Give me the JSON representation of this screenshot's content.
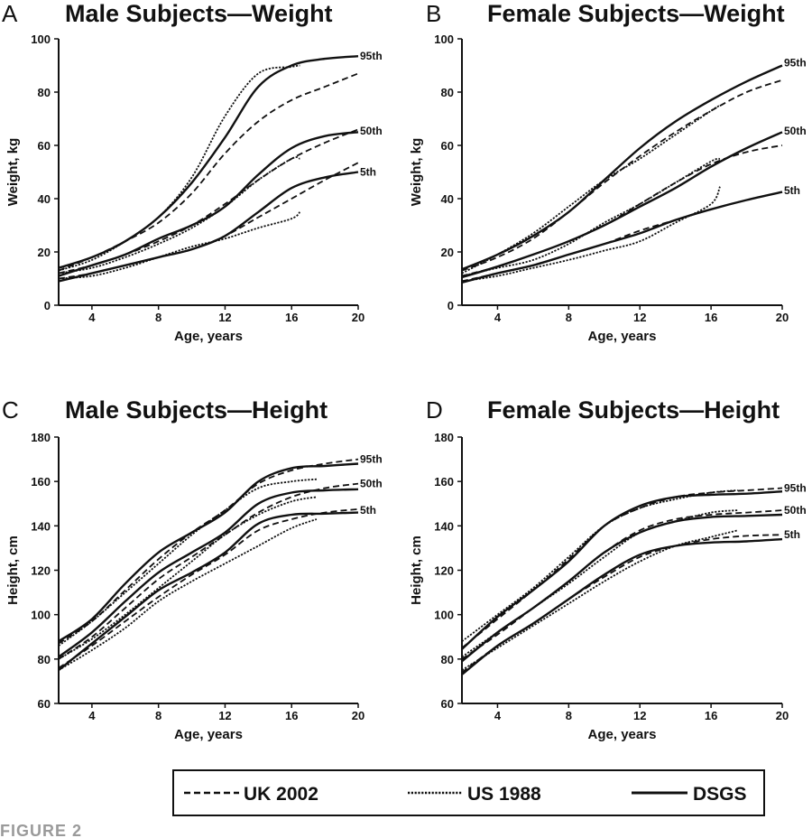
{
  "figure_label": "FIGURE 2",
  "legend": {
    "uk": "UK 2002",
    "us": "US 1988",
    "dsgs": "DSGS"
  },
  "styles": {
    "UK 2002": "dashed",
    "US 1988": "dotted",
    "DSGS": "solid"
  },
  "chart_data": [
    {
      "type": "line",
      "panel": "A",
      "title": "Male Subjects—Weight",
      "xlabel": "Age, years",
      "ylabel": "Weight, kg",
      "xlim": [
        2,
        20
      ],
      "ylim": [
        0,
        100
      ],
      "xticks": [
        "4",
        "8",
        "12",
        "16",
        "20"
      ],
      "yticks": [
        "0",
        "20",
        "40",
        "60",
        "80",
        "100"
      ],
      "percentile_labels": [
        {
          "text": "95th",
          "y": 93.5
        },
        {
          "text": "50th",
          "y": 65.5
        },
        {
          "text": "5th",
          "y": 50
        }
      ],
      "series": [
        {
          "source": "DSGS",
          "percentile": "95th",
          "x": [
            2,
            4,
            6,
            8,
            10,
            12,
            14,
            16,
            18,
            20
          ],
          "y": [
            14,
            18,
            24,
            33,
            46,
            63,
            82,
            90,
            92.5,
            93.5
          ]
        },
        {
          "source": "DSGS",
          "percentile": "50th",
          "x": [
            2,
            4,
            6,
            8,
            10,
            12,
            14,
            16,
            18,
            20
          ],
          "y": [
            11,
            15,
            19,
            25,
            30,
            37,
            49,
            59,
            63.5,
            65
          ]
        },
        {
          "source": "DSGS",
          "percentile": "5th",
          "x": [
            2,
            4,
            6,
            8,
            10,
            12,
            14,
            16,
            18,
            20
          ],
          "y": [
            9,
            12,
            15,
            18,
            21,
            26,
            35,
            44,
            48,
            50
          ]
        },
        {
          "source": "UK 2002",
          "percentile": "95th",
          "x": [
            2,
            4,
            6,
            8,
            10,
            12,
            14,
            16,
            18,
            20
          ],
          "y": [
            13,
            18,
            24,
            31,
            42,
            57,
            69,
            77,
            82,
            87
          ]
        },
        {
          "source": "UK 2002",
          "percentile": "50th",
          "x": [
            2,
            4,
            6,
            8,
            10,
            12,
            14,
            16,
            18,
            20
          ],
          "y": [
            12,
            15,
            19,
            24,
            30,
            38,
            47,
            55,
            61,
            66
          ]
        },
        {
          "source": "UK 2002",
          "percentile": "5th",
          "x": [
            2,
            4,
            6,
            8,
            10,
            12,
            14,
            16,
            18,
            20
          ],
          "y": [
            10,
            12,
            15,
            18,
            21,
            26,
            33,
            40,
            47,
            53.5
          ]
        },
        {
          "source": "US 1988",
          "percentile": "95th",
          "x": [
            2,
            4,
            6,
            8,
            10,
            12,
            14,
            16,
            16.5
          ],
          "y": [
            13,
            17,
            24,
            33,
            48,
            71,
            87,
            89.5,
            90
          ]
        },
        {
          "source": "US 1988",
          "percentile": "50th",
          "x": [
            2,
            4,
            6,
            8,
            10,
            12,
            14,
            16,
            16.5
          ],
          "y": [
            12,
            14,
            18,
            23,
            29,
            37,
            47,
            55,
            55
          ]
        },
        {
          "source": "US 1988",
          "percentile": "5th",
          "x": [
            2,
            4,
            6,
            8,
            10,
            12,
            14,
            16,
            16.5
          ],
          "y": [
            10,
            11,
            14,
            18,
            22,
            25,
            29,
            32.5,
            35
          ]
        }
      ]
    },
    {
      "type": "line",
      "panel": "B",
      "title": "Female Subjects—Weight",
      "xlabel": "Age, years",
      "ylabel": "Weight, kg",
      "xlim": [
        2,
        20
      ],
      "ylim": [
        0,
        100
      ],
      "xticks": [
        "4",
        "8",
        "12",
        "16",
        "20"
      ],
      "yticks": [
        "0",
        "20",
        "40",
        "60",
        "80",
        "100"
      ],
      "percentile_labels": [
        {
          "text": "95th",
          "y": 91
        },
        {
          "text": "50th",
          "y": 65.5
        },
        {
          "text": "5th",
          "y": 43
        }
      ],
      "series": [
        {
          "source": "DSGS",
          "percentile": "95th",
          "x": [
            2,
            4,
            6,
            8,
            10,
            12,
            14,
            16,
            18,
            20
          ],
          "y": [
            13.5,
            19,
            26,
            35,
            47,
            59,
            69,
            77,
            84,
            90
          ]
        },
        {
          "source": "DSGS",
          "percentile": "50th",
          "x": [
            2,
            4,
            6,
            8,
            10,
            12,
            14,
            16,
            18,
            20
          ],
          "y": [
            10.5,
            14.5,
            19,
            24,
            30,
            37,
            44,
            52,
            59,
            65
          ]
        },
        {
          "source": "DSGS",
          "percentile": "5th",
          "x": [
            2,
            4,
            6,
            8,
            10,
            12,
            14,
            16,
            18,
            20
          ],
          "y": [
            8.5,
            12,
            15,
            19,
            23,
            27,
            32,
            36,
            39.5,
            42.5
          ]
        },
        {
          "source": "UK 2002",
          "percentile": "95th",
          "x": [
            2,
            4,
            6,
            8,
            10,
            12,
            14,
            16,
            18,
            20
          ],
          "y": [
            13,
            18,
            25,
            35,
            46,
            56,
            65,
            73,
            80,
            84.5
          ]
        },
        {
          "source": "UK 2002",
          "percentile": "50th",
          "x": [
            2,
            4,
            6,
            8,
            10,
            12,
            14,
            16,
            18,
            20
          ],
          "y": [
            11,
            14.5,
            19,
            24,
            30,
            38,
            46,
            53,
            57.5,
            60
          ]
        },
        {
          "source": "UK 2002",
          "percentile": "5th",
          "x": [
            2,
            4,
            6,
            8,
            10,
            12,
            14,
            16,
            18,
            20
          ],
          "y": [
            9,
            12,
            15,
            19,
            23,
            28,
            32,
            36,
            39.5,
            42.5
          ]
        },
        {
          "source": "US 1988",
          "percentile": "95th",
          "x": [
            2,
            4,
            6,
            8,
            10,
            12,
            14,
            16,
            16.5
          ],
          "y": [
            12,
            19,
            27,
            37,
            47,
            55,
            64,
            73,
            75
          ]
        },
        {
          "source": "US 1988",
          "percentile": "50th",
          "x": [
            2,
            4,
            6,
            8,
            10,
            12,
            14,
            16,
            16.5
          ],
          "y": [
            11,
            14,
            17,
            23,
            31,
            38,
            46,
            54,
            55
          ]
        },
        {
          "source": "US 1988",
          "percentile": "5th",
          "x": [
            2,
            4,
            6,
            8,
            10,
            12,
            14,
            16,
            16.5
          ],
          "y": [
            9,
            11,
            14,
            17,
            20.5,
            24,
            31,
            38,
            44.5
          ]
        }
      ]
    },
    {
      "type": "line",
      "panel": "C",
      "title": "Male Subjects—Height",
      "xlabel": "Age, years",
      "ylabel": "Height, cm",
      "xlim": [
        2,
        20
      ],
      "ylim": [
        60,
        180
      ],
      "xticks": [
        "4",
        "8",
        "12",
        "16",
        "20"
      ],
      "yticks": [
        "60",
        "80",
        "100",
        "120",
        "140",
        "160",
        "180"
      ],
      "percentile_labels": [
        {
          "text": "95th",
          "y": 170
        },
        {
          "text": "50th",
          "y": 159
        },
        {
          "text": "5th",
          "y": 147
        }
      ],
      "series": [
        {
          "source": "DSGS",
          "percentile": "95th",
          "x": [
            2,
            4,
            6,
            8,
            10,
            12,
            14,
            16,
            18,
            20
          ],
          "y": [
            88,
            98,
            114,
            128,
            137,
            146,
            160,
            166,
            167,
            168
          ]
        },
        {
          "source": "DSGS",
          "percentile": "50th",
          "x": [
            2,
            4,
            6,
            8,
            10,
            12,
            14,
            16,
            18,
            20
          ],
          "y": [
            81,
            92,
            106,
            119,
            128,
            137,
            150,
            155,
            156,
            156.5
          ]
        },
        {
          "source": "DSGS",
          "percentile": "5th",
          "x": [
            2,
            4,
            6,
            8,
            10,
            12,
            14,
            16,
            18,
            20
          ],
          "y": [
            75,
            87,
            99,
            111,
            119,
            128,
            141,
            145,
            145.5,
            146
          ]
        },
        {
          "source": "UK 2002",
          "percentile": "95th",
          "x": [
            2,
            4,
            6,
            8,
            10,
            12,
            14,
            16,
            18,
            20
          ],
          "y": [
            87,
            97,
            111,
            125,
            137,
            147,
            159,
            165,
            168,
            170
          ]
        },
        {
          "source": "UK 2002",
          "percentile": "50th",
          "x": [
            2,
            4,
            6,
            8,
            10,
            12,
            14,
            16,
            18,
            20
          ],
          "y": [
            80,
            90,
            103,
            116,
            126,
            136,
            146,
            153,
            157,
            159
          ]
        },
        {
          "source": "UK 2002",
          "percentile": "5th",
          "x": [
            2,
            4,
            6,
            8,
            10,
            12,
            14,
            16,
            18,
            20
          ],
          "y": [
            76,
            86,
            97,
            108,
            118,
            127,
            138,
            143,
            146,
            147.5
          ]
        },
        {
          "source": "US 1988",
          "percentile": "95th",
          "x": [
            2,
            4,
            6,
            8,
            10,
            12,
            14,
            16,
            17.5
          ],
          "y": [
            86,
            97,
            110,
            123,
            136,
            147,
            157,
            160,
            161
          ]
        },
        {
          "source": "US 1988",
          "percentile": "50th",
          "x": [
            2,
            4,
            6,
            8,
            10,
            12,
            14,
            16,
            17.5
          ],
          "y": [
            80,
            89,
            100,
            112,
            124,
            136,
            145,
            151,
            153
          ]
        },
        {
          "source": "US 1988",
          "percentile": "5th",
          "x": [
            2,
            4,
            6,
            8,
            10,
            12,
            14,
            16,
            17.5
          ],
          "y": [
            75,
            84,
            94,
            106,
            115,
            123,
            131,
            139,
            143
          ]
        }
      ]
    },
    {
      "type": "line",
      "panel": "D",
      "title": "Female Subjects—Height",
      "xlabel": "Age, years",
      "ylabel": "Height, cm",
      "xlim": [
        2,
        20
      ],
      "ylim": [
        60,
        180
      ],
      "xticks": [
        "4",
        "8",
        "12",
        "16",
        "20"
      ],
      "yticks": [
        "60",
        "80",
        "100",
        "120",
        "140",
        "160",
        "180"
      ],
      "percentile_labels": [
        {
          "text": "95th",
          "y": 157
        },
        {
          "text": "50th",
          "y": 147
        },
        {
          "text": "5th",
          "y": 136
        }
      ],
      "series": [
        {
          "source": "DSGS",
          "percentile": "95th",
          "x": [
            2,
            4,
            6,
            8,
            10,
            12,
            14,
            16,
            18,
            20
          ],
          "y": [
            84.5,
            99,
            111,
            124,
            140,
            149,
            153,
            154,
            154.5,
            155.5
          ]
        },
        {
          "source": "DSGS",
          "percentile": "50th",
          "x": [
            2,
            4,
            6,
            8,
            10,
            12,
            14,
            16,
            18,
            20
          ],
          "y": [
            79,
            92,
            103,
            115,
            128,
            137,
            142,
            144,
            144.5,
            145
          ]
        },
        {
          "source": "DSGS",
          "percentile": "5th",
          "x": [
            2,
            4,
            6,
            8,
            10,
            12,
            14,
            16,
            18,
            20
          ],
          "y": [
            73,
            86,
            96,
            107,
            118,
            127,
            131,
            132.5,
            133,
            134
          ]
        },
        {
          "source": "UK 2002",
          "percentile": "95th",
          "x": [
            2,
            4,
            6,
            8,
            10,
            12,
            14,
            16,
            18,
            20
          ],
          "y": [
            85,
            98,
            111,
            125,
            140,
            148,
            153,
            155,
            156,
            157
          ]
        },
        {
          "source": "UK 2002",
          "percentile": "50th",
          "x": [
            2,
            4,
            6,
            8,
            10,
            12,
            14,
            16,
            18,
            20
          ],
          "y": [
            80,
            91,
            103,
            115,
            128,
            138,
            143,
            145,
            146,
            147
          ]
        },
        {
          "source": "UK 2002",
          "percentile": "5th",
          "x": [
            2,
            4,
            6,
            8,
            10,
            12,
            14,
            16,
            18,
            20
          ],
          "y": [
            74,
            86,
            96,
            107,
            117,
            126,
            131,
            134,
            135.5,
            136
          ]
        },
        {
          "source": "US 1988",
          "percentile": "95th",
          "x": [
            2,
            4,
            6,
            8,
            10,
            12,
            14,
            16,
            17.5
          ],
          "y": [
            88,
            100,
            112,
            126,
            140,
            148,
            152,
            155,
            156
          ]
        },
        {
          "source": "US 1988",
          "percentile": "50th",
          "x": [
            2,
            4,
            6,
            8,
            10,
            12,
            14,
            16,
            17.5
          ],
          "y": [
            81,
            92,
            103,
            114,
            126,
            137,
            142,
            146,
            147
          ]
        },
        {
          "source": "US 1988",
          "percentile": "5th",
          "x": [
            2,
            4,
            6,
            8,
            10,
            12,
            14,
            16,
            17.5
          ],
          "y": [
            75,
            85,
            95,
            105,
            115,
            124,
            131,
            135,
            138
          ]
        }
      ]
    }
  ]
}
